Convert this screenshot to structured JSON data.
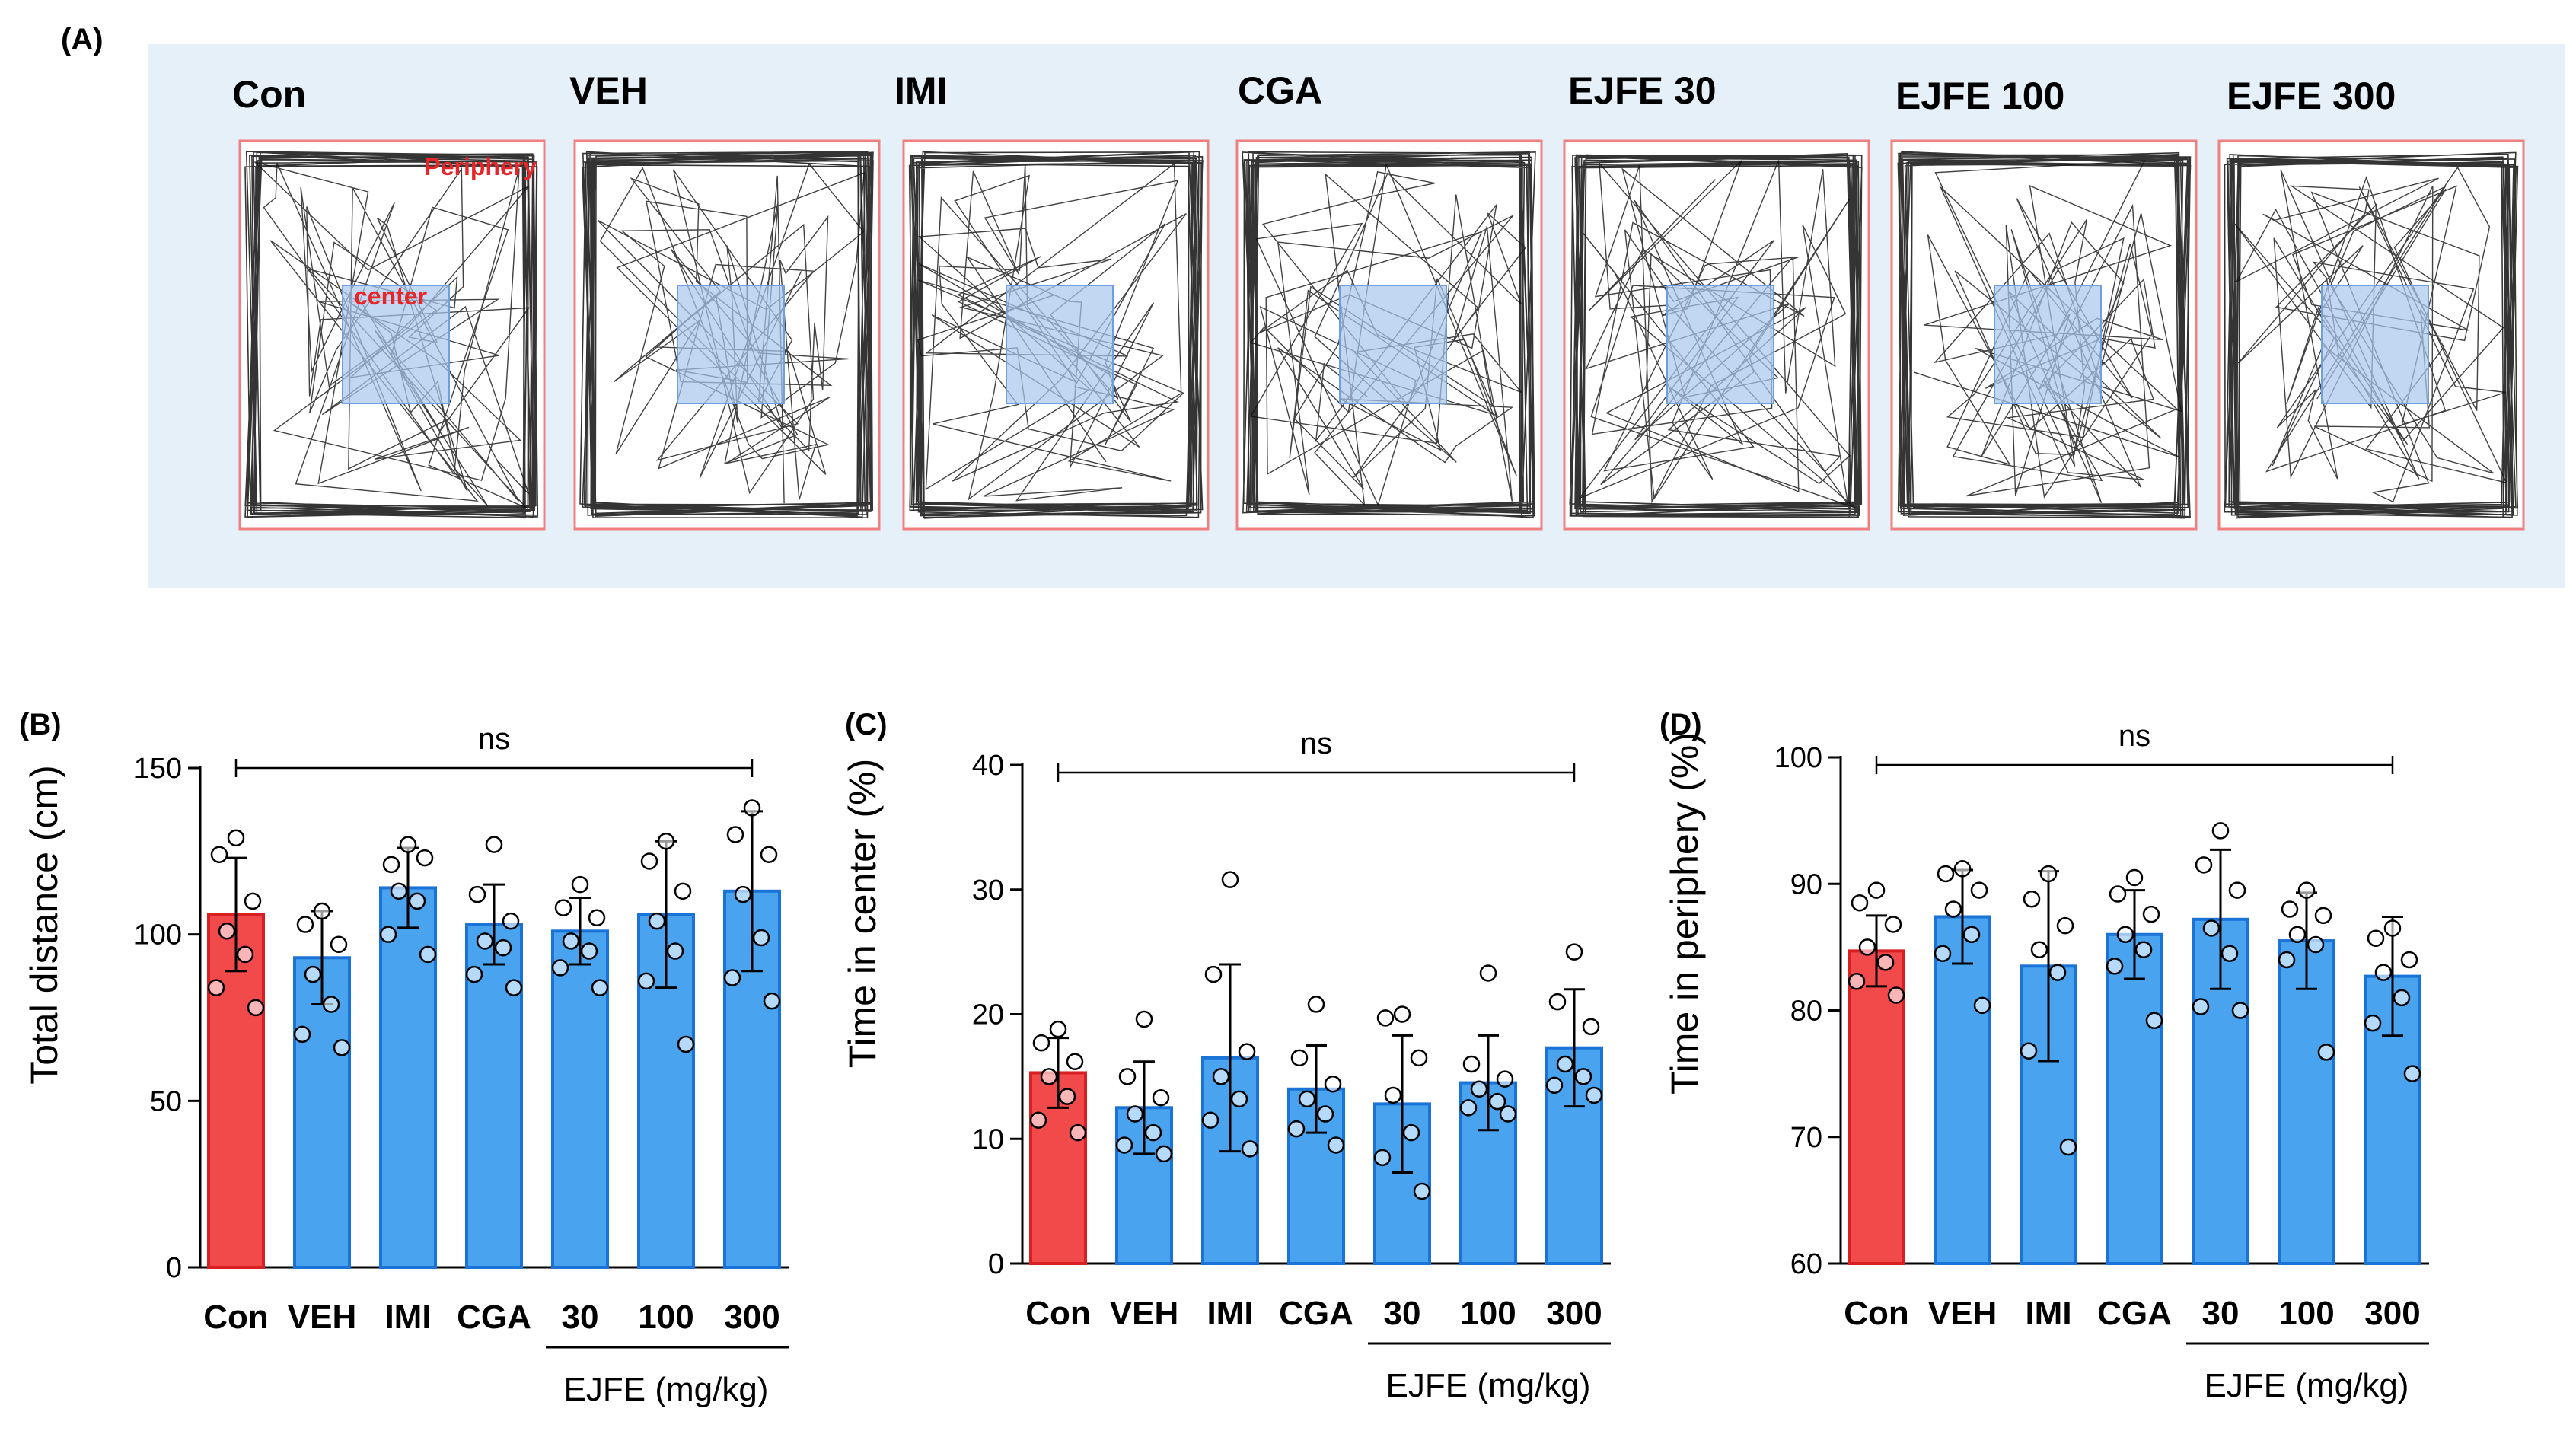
{
  "figure": {
    "panel_a": {
      "letter": "(A)",
      "groups": [
        "Con",
        "VEH",
        "IMI",
        "CGA",
        "EJFE 30",
        "EJFE 100",
        "EJFE 300"
      ],
      "zone_labels": {
        "periphery": "Periphery",
        "center": "center"
      },
      "colors": {
        "background": "#e6f0f8",
        "border": "#f08080",
        "center": "#a8c8ec",
        "track": "#111111",
        "zone_text": "#e8262a"
      }
    }
  },
  "colors": {
    "con_bar": "#f2494b",
    "con_edge": "#d81f22",
    "veh_bar": "#4aa3ef",
    "veh_edge": "#1a73d6"
  },
  "chart_data": [
    {
      "panel": "(B)",
      "type": "bar",
      "categories": [
        "Con",
        "VEH",
        "IMI",
        "CGA",
        "30",
        "100",
        "300"
      ],
      "group_label": "EJFE (mg/kg)",
      "values": [
        106,
        93,
        114,
        103,
        101,
        106,
        113
      ],
      "sd": [
        17,
        14,
        12,
        12,
        10,
        22,
        24
      ],
      "points": [
        [
          129,
          124,
          110,
          101,
          94,
          84,
          78
        ],
        [
          107,
          103,
          97,
          88,
          79,
          70,
          66
        ],
        [
          127,
          121,
          123,
          113,
          110,
          100,
          94
        ],
        [
          127,
          112,
          104,
          98,
          96,
          88,
          84
        ],
        [
          115,
          108,
          105,
          98,
          95,
          90,
          84
        ],
        [
          128,
          122,
          113,
          104,
          95,
          86,
          67
        ],
        [
          138,
          130,
          124,
          112,
          99,
          87,
          80
        ]
      ],
      "title": "",
      "annotation": "ns",
      "xlabel": "",
      "ylabel": "Total distance (cm)",
      "ylim": [
        0,
        150
      ],
      "yticks": [
        0,
        50,
        100,
        150
      ]
    },
    {
      "panel": "(C)",
      "type": "bar",
      "categories": [
        "Con",
        "VEH",
        "IMI",
        "CGA",
        "30",
        "100",
        "300"
      ],
      "group_label": "EJFE (mg/kg)",
      "values": [
        15.3,
        12.5,
        16.5,
        14.0,
        12.8,
        14.5,
        17.3
      ],
      "sd": [
        2.8,
        3.7,
        7.5,
        3.5,
        5.5,
        3.8,
        4.7
      ],
      "points": [
        [
          18.8,
          17.7,
          16.2,
          15.0,
          13.4,
          11.5,
          10.5
        ],
        [
          19.6,
          15.0,
          13.3,
          12.0,
          10.5,
          9.5,
          8.8
        ],
        [
          30.8,
          23.2,
          17.0,
          15.0,
          13.2,
          11.5,
          9.2
        ],
        [
          20.8,
          16.5,
          14.4,
          13.2,
          12.0,
          10.8,
          9.5
        ],
        [
          20.0,
          19.7,
          16.5,
          13.5,
          10.5,
          8.5,
          5.8
        ],
        [
          23.3,
          16.0,
          14.8,
          14.0,
          13.0,
          12.5,
          12.0
        ],
        [
          25.0,
          21.0,
          19.0,
          16.0,
          15.0,
          14.3,
          13.5
        ]
      ],
      "title": "",
      "annotation": "ns",
      "xlabel": "",
      "ylabel": "Time in center (%)",
      "ylim": [
        0,
        40
      ],
      "yticks": [
        0,
        10,
        20,
        30,
        40
      ]
    },
    {
      "panel": "(D)",
      "type": "bar",
      "categories": [
        "Con",
        "VEH",
        "IMI",
        "CGA",
        "30",
        "100",
        "300"
      ],
      "group_label": "EJFE (mg/kg)",
      "values": [
        84.7,
        87.4,
        83.5,
        86.0,
        87.2,
        85.5,
        82.7
      ],
      "sd": [
        2.8,
        3.7,
        7.5,
        3.5,
        5.5,
        3.8,
        4.7
      ],
      "points": [
        [
          89.5,
          88.5,
          86.8,
          85.0,
          83.8,
          82.3,
          81.2
        ],
        [
          91.2,
          90.8,
          89.5,
          88.0,
          86.0,
          84.5,
          80.4
        ],
        [
          90.8,
          88.8,
          86.7,
          84.8,
          83.0,
          76.8,
          69.2
        ],
        [
          90.5,
          89.2,
          87.6,
          86.0,
          84.8,
          83.5,
          79.2
        ],
        [
          94.2,
          91.5,
          89.5,
          86.5,
          84.5,
          80.3,
          80.0
        ],
        [
          89.5,
          88.0,
          87.5,
          86.0,
          85.2,
          84.0,
          76.7
        ],
        [
          86.5,
          85.7,
          84.0,
          83.0,
          81.0,
          79.0,
          75.0
        ]
      ],
      "title": "",
      "annotation": "ns",
      "xlabel": "",
      "ylabel": "Time in periphery (%)",
      "ylim": [
        60,
        100
      ],
      "yticks": [
        60,
        70,
        80,
        90,
        100
      ]
    }
  ]
}
